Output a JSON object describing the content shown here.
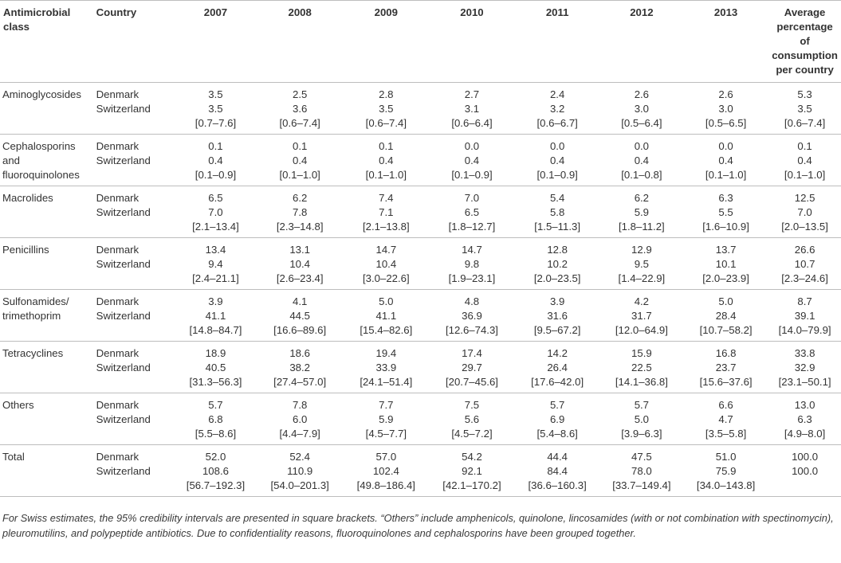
{
  "headers": {
    "class": "Antimicrobial class",
    "country": "Country",
    "years": [
      "2007",
      "2008",
      "2009",
      "2010",
      "2011",
      "2012",
      "2013"
    ],
    "average": "Average percentage of consumption per country"
  },
  "rows": [
    {
      "class_lines": [
        "Aminoglycosides"
      ],
      "countries": [
        "Denmark",
        "Switzerland"
      ],
      "values": [
        [
          "3.5",
          "3.5",
          "[0.7–7.6]"
        ],
        [
          "2.5",
          "3.6",
          "[0.6–7.4]"
        ],
        [
          "2.8",
          "3.5",
          "[0.6–7.4]"
        ],
        [
          "2.7",
          "3.1",
          "[0.6–6.4]"
        ],
        [
          "2.4",
          "3.2",
          "[0.6–6.7]"
        ],
        [
          "2.6",
          "3.0",
          "[0.5–6.4]"
        ],
        [
          "2.6",
          "3.0",
          "[0.5–6.5]"
        ],
        [
          "5.3",
          "3.5",
          "[0.6–7.4]"
        ]
      ]
    },
    {
      "class_lines": [
        "Cephalosporins",
        "and",
        "fluoroquinolones"
      ],
      "countries": [
        "Denmark",
        "Switzerland"
      ],
      "values": [
        [
          "0.1",
          "0.4",
          "[0.1–0.9]"
        ],
        [
          "0.1",
          "0.4",
          "[0.1–1.0]"
        ],
        [
          "0.1",
          "0.4",
          "[0.1–1.0]"
        ],
        [
          "0.0",
          "0.4",
          "[0.1–0.9]"
        ],
        [
          "0.0",
          "0.4",
          "[0.1–0.9]"
        ],
        [
          "0.0",
          "0.4",
          "[0.1–0.8]"
        ],
        [
          "0.0",
          "0.4",
          "[0.1–1.0]"
        ],
        [
          "0.1",
          "0.4",
          "[0.1–1.0]"
        ]
      ]
    },
    {
      "class_lines": [
        "Macrolides"
      ],
      "countries": [
        "Denmark",
        "Switzerland"
      ],
      "values": [
        [
          "6.5",
          "7.0",
          "[2.1–13.4]"
        ],
        [
          "6.2",
          "7.8",
          "[2.3–14.8]"
        ],
        [
          "7.4",
          "7.1",
          "[2.1–13.8]"
        ],
        [
          "7.0",
          "6.5",
          "[1.8–12.7]"
        ],
        [
          "5.4",
          "5.8",
          "[1.5–11.3]"
        ],
        [
          "6.2",
          "5.9",
          "[1.8–11.2]"
        ],
        [
          "6.3",
          "5.5",
          "[1.6–10.9]"
        ],
        [
          "12.5",
          "7.0",
          "[2.0–13.5]"
        ]
      ]
    },
    {
      "class_lines": [
        "Penicillins"
      ],
      "countries": [
        "Denmark",
        "Switzerland"
      ],
      "values": [
        [
          "13.4",
          "9.4",
          "[2.4–21.1]"
        ],
        [
          "13.1",
          "10.4",
          "[2.6–23.4]"
        ],
        [
          "14.7",
          "10.4",
          "[3.0–22.6]"
        ],
        [
          "14.7",
          "9.8",
          "[1.9–23.1]"
        ],
        [
          "12.8",
          "10.2",
          "[2.0–23.5]"
        ],
        [
          "12.9",
          "9.5",
          "[1.4–22.9]"
        ],
        [
          "13.7",
          "10.1",
          "[2.0–23.9]"
        ],
        [
          "26.6",
          "10.7",
          "[2.3–24.6]"
        ]
      ]
    },
    {
      "class_lines": [
        "Sulfonamides/",
        "trimethoprim"
      ],
      "countries": [
        "Denmark",
        "Switzerland"
      ],
      "values": [
        [
          "3.9",
          "41.1",
          "[14.8–84.7]"
        ],
        [
          "4.1",
          "44.5",
          "[16.6–89.6]"
        ],
        [
          "5.0",
          "41.1",
          "[15.4–82.6]"
        ],
        [
          "4.8",
          "36.9",
          "[12.6–74.3]"
        ],
        [
          "3.9",
          "31.6",
          "[9.5–67.2]"
        ],
        [
          "4.2",
          "31.7",
          "[12.0–64.9]"
        ],
        [
          "5.0",
          "28.4",
          "[10.7–58.2]"
        ],
        [
          "8.7",
          "39.1",
          "[14.0–79.9]"
        ]
      ]
    },
    {
      "class_lines": [
        "Tetracyclines"
      ],
      "countries": [
        "Denmark",
        "Switzerland"
      ],
      "values": [
        [
          "18.9",
          "40.5",
          "[31.3–56.3]"
        ],
        [
          "18.6",
          "38.2",
          "[27.4–57.0]"
        ],
        [
          "19.4",
          "33.9",
          "[24.1–51.4]"
        ],
        [
          "17.4",
          "29.7",
          "[20.7–45.6]"
        ],
        [
          "14.2",
          "26.4",
          "[17.6–42.0]"
        ],
        [
          "15.9",
          "22.5",
          "[14.1–36.8]"
        ],
        [
          "16.8",
          "23.7",
          "[15.6–37.6]"
        ],
        [
          "33.8",
          "32.9",
          "[23.1–50.1]"
        ]
      ]
    },
    {
      "class_lines": [
        "Others"
      ],
      "countries": [
        "Denmark",
        "Switzerland"
      ],
      "values": [
        [
          "5.7",
          "6.8",
          "[5.5–8.6]"
        ],
        [
          "7.8",
          "6.0",
          "[4.4–7.9]"
        ],
        [
          "7.7",
          "5.9",
          "[4.5–7.7]"
        ],
        [
          "7.5",
          "5.6",
          "[4.5–7.2]"
        ],
        [
          "5.7",
          "6.9",
          "[5.4–8.6]"
        ],
        [
          "5.7",
          "5.0",
          "[3.9–6.3]"
        ],
        [
          "6.6",
          "4.7",
          "[3.5–5.8]"
        ],
        [
          "13.0",
          "6.3",
          "[4.9–8.0]"
        ]
      ]
    },
    {
      "class_lines": [
        "Total"
      ],
      "countries": [
        "Denmark",
        "Switzerland"
      ],
      "values": [
        [
          "52.0",
          "108.6",
          "[56.7–192.3]"
        ],
        [
          "52.4",
          "110.9",
          "[54.0–201.3]"
        ],
        [
          "57.0",
          "102.4",
          "[49.8–186.4]"
        ],
        [
          "54.2",
          "92.1",
          "[42.1–170.2]"
        ],
        [
          "44.4",
          "84.4",
          "[36.6–160.3]"
        ],
        [
          "47.5",
          "78.0",
          "[33.7–149.4]"
        ],
        [
          "51.0",
          "75.9",
          "[34.0–143.8]"
        ],
        [
          "100.0",
          "100.0"
        ]
      ]
    }
  ],
  "footnote": "For Swiss estimates, the 95% credibility intervals are presented in square brackets. “Others” include amphenicols, quinolone, lincosamides (with or not combination with spectinomycin), pleuromutilins, and polypeptide antibiotics. Due to confidentiality reasons, fluoroquinolones and cephalosporins have been grouped together."
}
